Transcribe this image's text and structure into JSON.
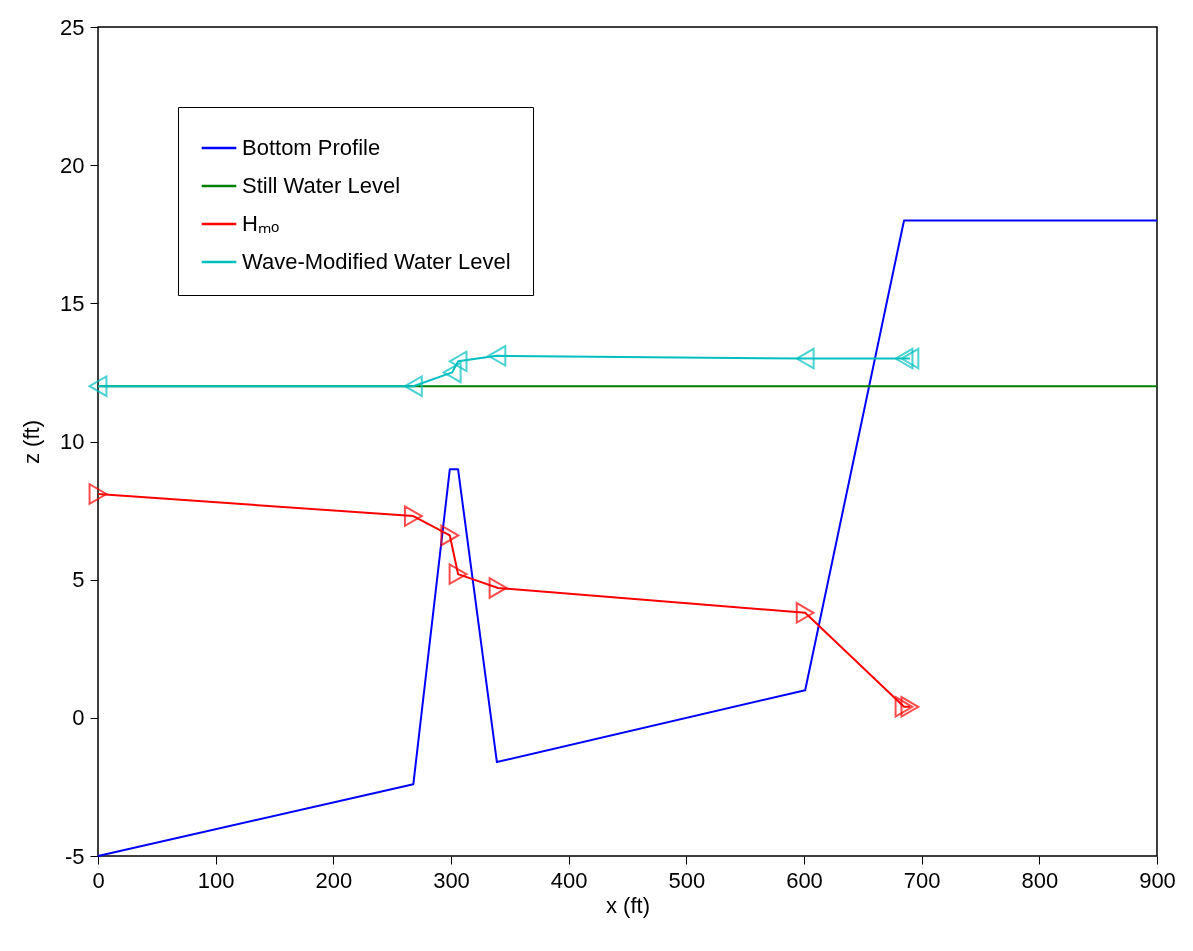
{
  "chart_data": {
    "type": "line",
    "xlabel": "x (ft)",
    "ylabel": "z (ft)",
    "xlim": [
      0,
      900
    ],
    "xticks": [
      0,
      100,
      200,
      300,
      400,
      500,
      600,
      700,
      800,
      900
    ],
    "ylim": [
      -5,
      25
    ],
    "yticks": [
      -5,
      0,
      5,
      10,
      15,
      20,
      25
    ],
    "grid": false,
    "legend": "top left",
    "series": [
      {
        "name": "Bottom Profile",
        "color": "#0000ff",
        "marker": "none",
        "x": [
          0,
          268,
          299,
          306,
          339,
          601,
          685,
          900
        ],
        "values": [
          -5,
          -2.4,
          9,
          9,
          -1.6,
          1,
          18,
          18
        ]
      },
      {
        "name": "Still Water Level",
        "color": "#008000",
        "marker": "none",
        "x": [
          0,
          900
        ],
        "values": [
          12,
          12
        ]
      },
      {
        "name": "Hₘₒ",
        "color": "#ff0000",
        "marker": "triangle-right",
        "x": [
          0,
          268,
          299,
          306,
          340,
          601,
          685,
          690
        ],
        "values": [
          8.1,
          7.3,
          6.6,
          5.2,
          4.7,
          3.8,
          0.4,
          0.4
        ]
      },
      {
        "name": "Wave-Modified Water Level",
        "color": "#00bfbf",
        "marker": "triangle-left",
        "x": [
          0,
          268,
          301,
          306,
          339,
          601,
          685,
          690
        ],
        "values": [
          12,
          12,
          12.5,
          12.9,
          13.1,
          13,
          13,
          13
        ]
      }
    ]
  }
}
